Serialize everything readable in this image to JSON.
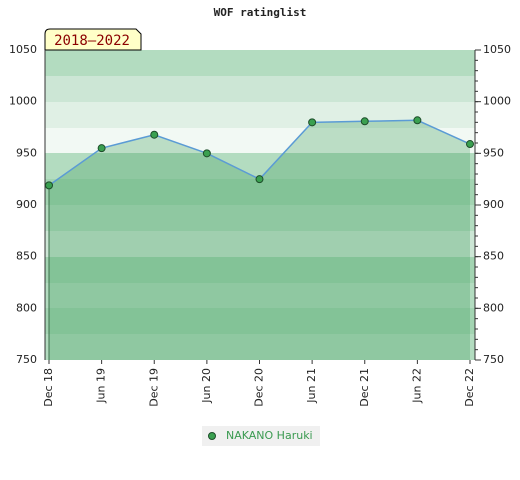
{
  "chart_data": {
    "type": "line",
    "title": "WOF ratinglist",
    "period_label": "2018–2022",
    "categories": [
      "Dec 18",
      "Jun 19",
      "Dec 19",
      "Jun 20",
      "Dec 20",
      "Jun 21",
      "Dec 21",
      "Jun 22",
      "Dec 22"
    ],
    "series": [
      {
        "name": "NAKANO Haruki",
        "color": "#5b9bd5",
        "marker_color": "#3aa050",
        "fill_color": "#3c9c5a",
        "values": [
          919,
          955,
          968,
          950,
          925,
          980,
          981,
          982,
          959
        ]
      }
    ],
    "ylim": [
      750,
      1050
    ],
    "yticks": [
      750,
      800,
      850,
      900,
      950,
      1000,
      1050
    ]
  }
}
